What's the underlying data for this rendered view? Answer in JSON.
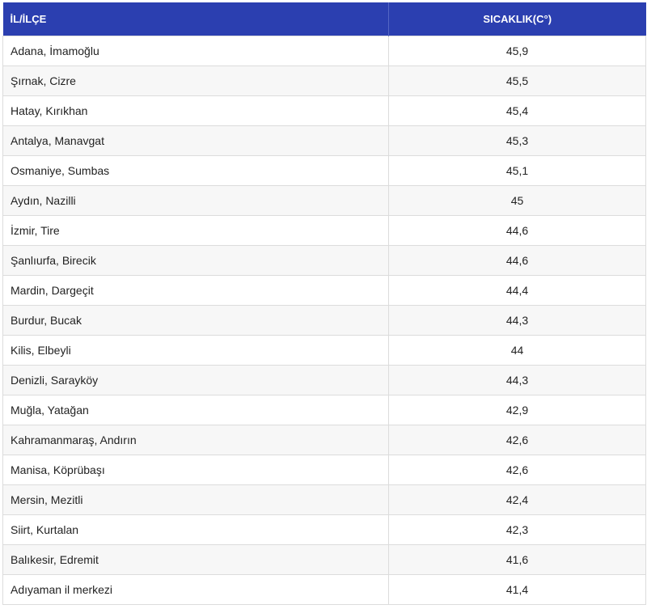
{
  "table": {
    "headers": {
      "location": "İL/İLÇE",
      "temperature": "SICAKLIK(C°)"
    },
    "rows": [
      {
        "location": "Adana, İmamoğlu",
        "temperature": "45,9"
      },
      {
        "location": "Şırnak, Cizre",
        "temperature": "45,5"
      },
      {
        "location": "Hatay, Kırıkhan",
        "temperature": "45,4"
      },
      {
        "location": "Antalya, Manavgat",
        "temperature": "45,3"
      },
      {
        "location": "Osmaniye, Sumbas",
        "temperature": "45,1"
      },
      {
        "location": "Aydın, Nazilli",
        "temperature": "45"
      },
      {
        "location": "İzmir, Tire",
        "temperature": "44,6"
      },
      {
        "location": "Şanlıurfa, Birecik",
        "temperature": "44,6"
      },
      {
        "location": "Mardin, Dargeçit",
        "temperature": "44,4"
      },
      {
        "location": "Burdur, Bucak",
        "temperature": "44,3"
      },
      {
        "location": "Kilis, Elbeyli",
        "temperature": "44"
      },
      {
        "location": "Denizli, Sarayköy",
        "temperature": "44,3"
      },
      {
        "location": "Muğla, Yatağan",
        "temperature": "42,9"
      },
      {
        "location": "Kahramanmaraş, Andırın",
        "temperature": "42,6"
      },
      {
        "location": "Manisa, Köprübaşı",
        "temperature": "42,6"
      },
      {
        "location": "Mersin, Mezitli",
        "temperature": "42,4"
      },
      {
        "location": "Siirt, Kurtalan",
        "temperature": "42,3"
      },
      {
        "location": "Balıkesir, Edremit",
        "temperature": "41,6"
      },
      {
        "location": "Adıyaman il merkezi",
        "temperature": "41,4"
      }
    ]
  },
  "colors": {
    "header_bg": "#2b3fb0",
    "header_text": "#ffffff",
    "row_alt_bg": "#f7f7f7",
    "border": "#dcdcdc"
  }
}
